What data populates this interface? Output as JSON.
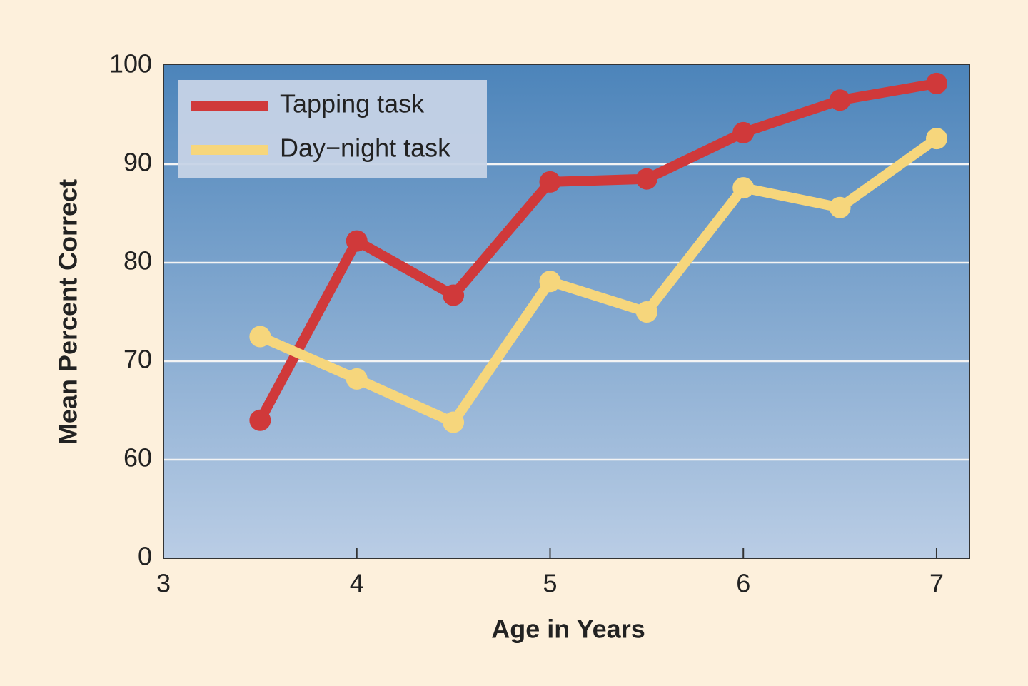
{
  "chart_data": {
    "type": "line",
    "xlabel": "Age in Years",
    "ylabel": "Mean Percent Correct",
    "x": [
      3.5,
      4,
      4.5,
      5,
      5.5,
      6,
      6.5,
      7
    ],
    "series": [
      {
        "name": "Tapping task",
        "color": "#d0393a",
        "values": [
          64,
          82.2,
          76.7,
          88.2,
          88.5,
          93.2,
          96.5,
          98.2
        ]
      },
      {
        "name": "Day−night task",
        "color": "#f6d67c",
        "values": [
          72.5,
          68.2,
          63.8,
          78.1,
          75,
          87.6,
          85.6,
          92.6
        ]
      }
    ],
    "xlim": [
      3,
      7.17
    ],
    "xticks": [
      3,
      4,
      5,
      6,
      7
    ],
    "ylim": [
      0,
      100
    ],
    "yticks": [
      0,
      60,
      70,
      80,
      90,
      100
    ],
    "axis_break": true,
    "grid": true,
    "legend": "upper left"
  }
}
